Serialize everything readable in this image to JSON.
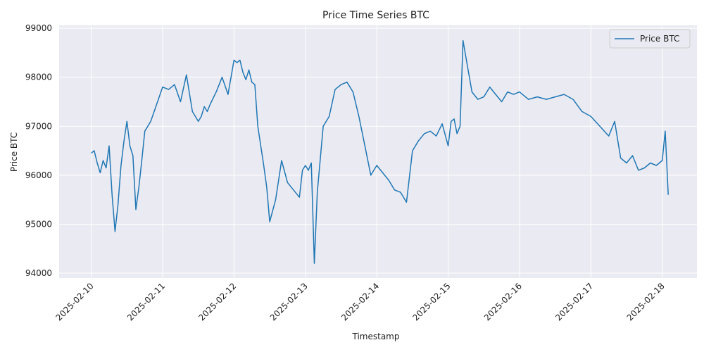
{
  "chart_data": {
    "type": "line",
    "title": "Price Time Series BTC",
    "xlabel": "Timestamp",
    "ylabel": "Price BTC",
    "x_ticks": [
      "2025-02-10",
      "2025-02-11",
      "2025-02-12",
      "2025-02-13",
      "2025-02-14",
      "2025-02-15",
      "2025-02-16",
      "2025-02-17",
      "2025-02-18"
    ],
    "y_ticks": [
      94000,
      95000,
      96000,
      97000,
      98000,
      99000
    ],
    "xlim": [
      "2025-02-09T13:12",
      "2025-02-18T11:40"
    ],
    "ylim": [
      93900,
      99060
    ],
    "grid": true,
    "legend": {
      "position": "top-right",
      "entries": [
        "Price BTC"
      ]
    },
    "colors": {
      "series": "#1f77b4",
      "plot_bg": "#eaeaf2",
      "grid": "#ffffff"
    },
    "series": [
      {
        "name": "Price BTC",
        "x": [
          "2025-02-10T00:00",
          "2025-02-10T01:00",
          "2025-02-10T02:00",
          "2025-02-10T03:00",
          "2025-02-10T04:00",
          "2025-02-10T05:00",
          "2025-02-10T06:00",
          "2025-02-10T07:00",
          "2025-02-10T08:00",
          "2025-02-10T09:00",
          "2025-02-10T10:00",
          "2025-02-10T11:00",
          "2025-02-10T12:00",
          "2025-02-10T13:00",
          "2025-02-10T14:00",
          "2025-02-10T15:00",
          "2025-02-10T16:00",
          "2025-02-10T17:00",
          "2025-02-10T18:00",
          "2025-02-10T20:00",
          "2025-02-10T22:00",
          "2025-02-11T00:00",
          "2025-02-11T02:00",
          "2025-02-11T04:00",
          "2025-02-11T06:00",
          "2025-02-11T08:00",
          "2025-02-11T10:00",
          "2025-02-11T12:00",
          "2025-02-11T13:00",
          "2025-02-11T14:00",
          "2025-02-11T15:00",
          "2025-02-11T16:00",
          "2025-02-11T18:00",
          "2025-02-11T20:00",
          "2025-02-11T22:00",
          "2025-02-12T00:00",
          "2025-02-12T01:00",
          "2025-02-12T02:00",
          "2025-02-12T03:00",
          "2025-02-12T04:00",
          "2025-02-12T05:00",
          "2025-02-12T06:00",
          "2025-02-12T07:00",
          "2025-02-12T08:00",
          "2025-02-12T09:00",
          "2025-02-12T10:00",
          "2025-02-12T11:00",
          "2025-02-12T12:00",
          "2025-02-12T14:00",
          "2025-02-12T16:00",
          "2025-02-12T18:00",
          "2025-02-12T20:00",
          "2025-02-12T22:00",
          "2025-02-12T23:00",
          "2025-02-13T00:00",
          "2025-02-13T01:00",
          "2025-02-13T02:00",
          "2025-02-13T03:00",
          "2025-02-13T04:00",
          "2025-02-13T06:00",
          "2025-02-13T08:00",
          "2025-02-13T10:00",
          "2025-02-13T12:00",
          "2025-02-13T14:00",
          "2025-02-13T16:00",
          "2025-02-13T18:00",
          "2025-02-13T20:00",
          "2025-02-13T22:00",
          "2025-02-14T00:00",
          "2025-02-14T02:00",
          "2025-02-14T04:00",
          "2025-02-14T06:00",
          "2025-02-14T08:00",
          "2025-02-14T10:00",
          "2025-02-14T12:00",
          "2025-02-14T14:00",
          "2025-02-14T16:00",
          "2025-02-14T18:00",
          "2025-02-14T20:00",
          "2025-02-14T22:00",
          "2025-02-15T00:00",
          "2025-02-15T01:00",
          "2025-02-15T02:00",
          "2025-02-15T03:00",
          "2025-02-15T04:00",
          "2025-02-15T05:00",
          "2025-02-15T06:00",
          "2025-02-15T08:00",
          "2025-02-15T10:00",
          "2025-02-15T12:00",
          "2025-02-15T14:00",
          "2025-02-15T16:00",
          "2025-02-15T18:00",
          "2025-02-15T20:00",
          "2025-02-15T22:00",
          "2025-02-16T00:00",
          "2025-02-16T03:00",
          "2025-02-16T06:00",
          "2025-02-16T09:00",
          "2025-02-16T12:00",
          "2025-02-16T15:00",
          "2025-02-16T18:00",
          "2025-02-16T21:00",
          "2025-02-17T00:00",
          "2025-02-17T03:00",
          "2025-02-17T06:00",
          "2025-02-17T08:00",
          "2025-02-17T10:00",
          "2025-02-17T12:00",
          "2025-02-17T14:00",
          "2025-02-17T16:00",
          "2025-02-17T18:00",
          "2025-02-17T20:00",
          "2025-02-17T22:00",
          "2025-02-18T00:00",
          "2025-02-18T01:00",
          "2025-02-18T02:00"
        ],
        "y": [
          96450,
          96500,
          96250,
          96050,
          96300,
          96150,
          96600,
          95600,
          94850,
          95400,
          96200,
          96700,
          97100,
          96600,
          96400,
          95300,
          95750,
          96300,
          96900,
          97100,
          97450,
          97800,
          97750,
          97850,
          97500,
          98050,
          97300,
          97100,
          97200,
          97400,
          97300,
          97450,
          97700,
          98000,
          97650,
          98350,
          98300,
          98350,
          98100,
          97950,
          98150,
          97900,
          97850,
          97000,
          96600,
          96200,
          95750,
          95050,
          95500,
          96300,
          95850,
          95700,
          95550,
          96100,
          96200,
          96100,
          96250,
          94200,
          95650,
          97000,
          97200,
          97750,
          97850,
          97900,
          97700,
          97200,
          96600,
          96000,
          96200,
          96050,
          95900,
          95700,
          95650,
          95450,
          96500,
          96700,
          96850,
          96900,
          96800,
          97050,
          96600,
          97100,
          97150,
          96850,
          97000,
          98750,
          98400,
          97700,
          97550,
          97600,
          97800,
          97650,
          97500,
          97700,
          97650,
          97700,
          97550,
          97600,
          97550,
          97600,
          97650,
          97550,
          97300,
          97200,
          97000,
          96800,
          97100,
          96350,
          96250,
          96400,
          96100,
          96150,
          96250,
          96200,
          96300,
          96900,
          95600
        ]
      }
    ]
  }
}
